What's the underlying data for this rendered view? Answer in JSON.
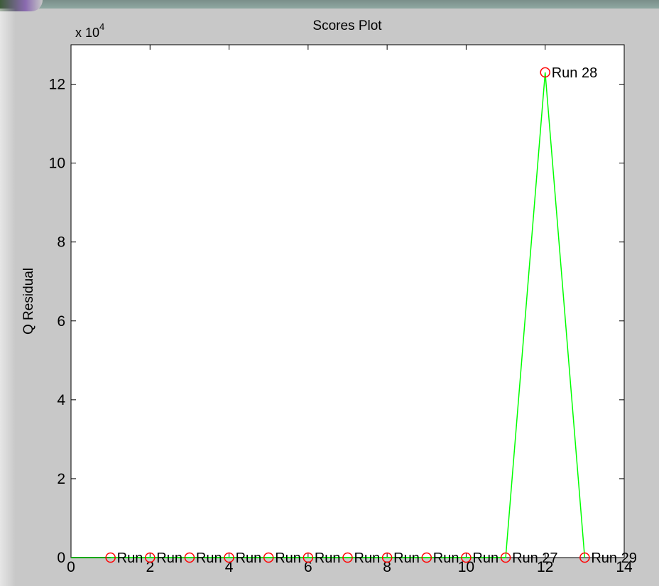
{
  "window": {
    "title": "Scores Plot"
  },
  "chart_data": {
    "type": "line",
    "title": "Scores Plot",
    "xlabel": "",
    "ylabel": "Q Residual",
    "y_multiplier_label": "x 10",
    "y_multiplier_exponent": "4",
    "xlim": [
      0,
      14
    ],
    "ylim": [
      0,
      130000
    ],
    "x_ticks": [
      0,
      2,
      4,
      6,
      8,
      10,
      12,
      14
    ],
    "y_ticks": [
      0,
      20000,
      40000,
      60000,
      80000,
      100000,
      120000
    ],
    "y_tick_labels": [
      "0",
      "2",
      "4",
      "6",
      "8",
      "10",
      "12"
    ],
    "grid": false,
    "legend": "none",
    "line_color": "#00ff00",
    "marker_color": "#ff0000",
    "reference_line": {
      "y": 0,
      "x_range": [
        0,
        11
      ],
      "color": "#00aa00"
    },
    "series": [
      {
        "x": [
          1,
          2,
          3,
          4,
          5,
          6,
          7,
          8,
          9,
          10,
          11,
          12,
          13
        ],
        "values": [
          0,
          0,
          0,
          0,
          0,
          0,
          0,
          0,
          0,
          0,
          0,
          123000,
          0
        ],
        "point_labels": [
          "Run",
          "Run",
          "Run",
          "Run",
          "Run",
          "Run",
          "Run",
          "Run",
          "Run",
          "Run",
          "Run 27",
          "Run 28",
          "Run 29"
        ]
      }
    ]
  }
}
